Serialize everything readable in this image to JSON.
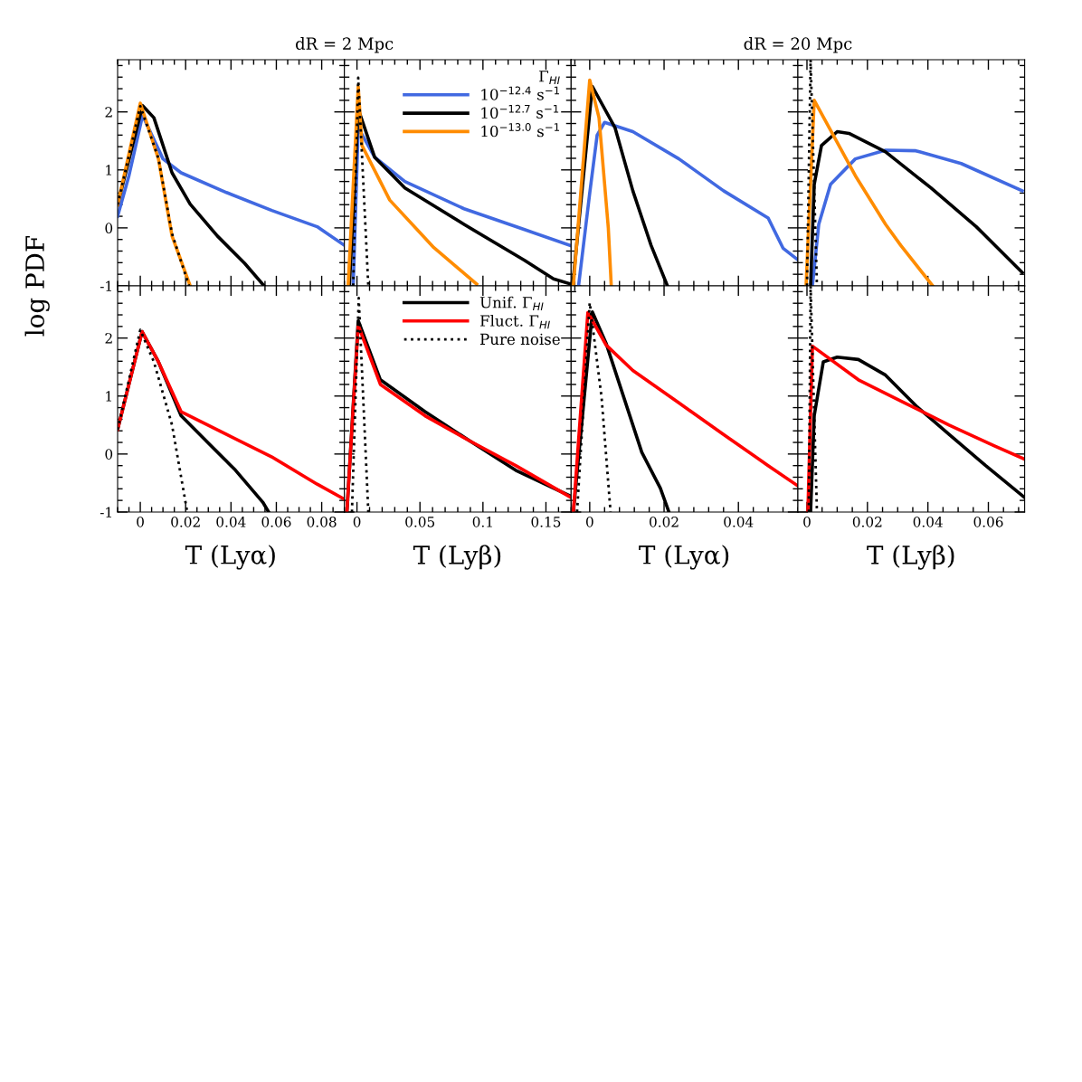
{
  "chart_data": [
    {
      "type": "line",
      "title": "dR = 2 Mpc",
      "ylabel": "log PDF",
      "xlim": [
        -0.01,
        0.09
      ],
      "ylim": [
        -1,
        2.9
      ],
      "xticks": [
        {
          "value": 0,
          "label": null
        },
        {
          "value": 0.02,
          "label": null
        },
        {
          "value": 0.04,
          "label": null
        },
        {
          "value": 0.06,
          "label": null
        },
        {
          "value": 0.08,
          "label": null
        }
      ],
      "yticks": [
        -1,
        0,
        1,
        2
      ],
      "tick_labels": "y",
      "series": [
        {
          "color": "#4169e1",
          "x": [
            -0.01,
            -0.005,
            0.001,
            0.01,
            0.018,
            0.038,
            0.058,
            0.078,
            0.09
          ],
          "values": [
            0.2,
            0.9,
            1.94,
            1.19,
            0.95,
            0.61,
            0.3,
            0.02,
            -0.3
          ]
        },
        {
          "color": "#000000",
          "x": [
            -0.01,
            0.001,
            0.006,
            0.014,
            0.022,
            0.034,
            0.046,
            0.0546
          ],
          "values": [
            0.4,
            2.11,
            1.9,
            0.95,
            0.41,
            -0.14,
            -0.61,
            -1
          ]
        },
        {
          "color": "#000000",
          "line_style": "dotted",
          "x": [
            -0.01,
            0,
            0.008,
            0.014,
            0.0215
          ],
          "values": [
            0.4,
            2.1,
            1.2,
            -0.1,
            -1
          ]
        },
        {
          "color": "#ff8c00",
          "x": [
            -0.01,
            0,
            0.008,
            0.014,
            0.022
          ],
          "values": [
            0.4,
            2.15,
            1.19,
            -0.14,
            -1
          ]
        }
      ]
    },
    {
      "type": "line",
      "xlim": [
        -0.01,
        0.17
      ],
      "ylim": [
        -1,
        2.9
      ],
      "xticks": [
        {
          "value": 0,
          "label": null
        },
        {
          "value": 0.05,
          "label": null
        },
        {
          "value": 0.1,
          "label": null
        },
        {
          "value": 0.15,
          "label": null
        }
      ],
      "yticks": [
        {
          "value": -1,
          "label": null
        },
        {
          "value": 0,
          "label": null
        },
        {
          "value": 1,
          "label": null
        },
        {
          "value": 2,
          "label": null
        }
      ],
      "tick_labels": false,
      "legend": "top right",
      "legend_title": "Γ$_{HI}$",
      "series": [
        {
          "name": "10$^{−12.4}$ s$^{−1}$",
          "color": "#4169e1",
          "x": [
            -0.003,
            0.001,
            0.014,
            0.038,
            0.085,
            0.133,
            0.169
          ],
          "values": [
            -1,
            1.73,
            1.22,
            0.8,
            0.33,
            -0.03,
            -0.3
          ]
        },
        {
          "name": "10$^{−12.7}$ s$^{−1}$",
          "color": "#000000",
          "x": [
            -0.006,
            0.001,
            0.014,
            0.038,
            0.085,
            0.133,
            0.156,
            0.17
          ],
          "values": [
            -1,
            2.05,
            1.22,
            0.69,
            0.06,
            -0.56,
            -0.88,
            -0.97
          ]
        },
        {
          "name": "10$^{−13.0}$ s$^{−1}$",
          "color": "#ff8c00",
          "x": [
            -0.007,
            0.001,
            0.004,
            0.026,
            0.061,
            0.095
          ],
          "values": [
            -1,
            2.44,
            1.42,
            0.48,
            -0.34,
            -0.97
          ]
        },
        {
          "color": "#000000",
          "line_style": "dotted",
          "x": [
            -0.003,
            0.001,
            0.009
          ],
          "values": [
            -1,
            2.59,
            -1
          ]
        }
      ]
    },
    {
      "type": "line",
      "title": "dR = 20 Mpc",
      "xlim": [
        -0.005,
        0.056
      ],
      "ylim": [
        -1,
        2.9
      ],
      "xticks": [
        {
          "value": 0,
          "label": null
        },
        {
          "value": 0.02,
          "label": null
        },
        {
          "value": 0.04,
          "label": null
        }
      ],
      "yticks": [
        {
          "value": -1,
          "label": null
        },
        {
          "value": 0,
          "label": null
        },
        {
          "value": 1,
          "label": null
        },
        {
          "value": 2,
          "label": null
        }
      ],
      "tick_labels": false,
      "series": [
        {
          "color": "#4169e1",
          "x": [
            -0.003,
            0,
            0.002,
            0.004,
            0.0116,
            0.024,
            0.036,
            0.048,
            0.052,
            0.056
          ],
          "values": [
            -1,
            0.6,
            1.6,
            1.82,
            1.66,
            1.19,
            0.64,
            0.17,
            -0.35,
            -0.55
          ]
        },
        {
          "color": "#000000",
          "x": [
            -0.0046,
            0.0007,
            0.0068,
            0.0116,
            0.0165,
            0.0209
          ],
          "values": [
            -1,
            2.44,
            1.73,
            0.64,
            -0.3,
            -1
          ]
        },
        {
          "color": "#ff8c00",
          "x": [
            -0.0044,
            0,
            0.0025,
            0.005,
            0.0058
          ],
          "values": [
            -1,
            2.55,
            1.9,
            0,
            -1
          ]
        }
      ]
    },
    {
      "type": "line",
      "xlim": [
        -0.003,
        0.072
      ],
      "ylim": [
        -1,
        2.9
      ],
      "xticks": [
        {
          "value": 0,
          "label": null
        },
        {
          "value": 0.02,
          "label": null
        },
        {
          "value": 0.04,
          "label": null
        },
        {
          "value": 0.06,
          "label": null
        }
      ],
      "yticks": [
        {
          "value": -1,
          "label": null
        },
        {
          "value": 0,
          "label": null
        },
        {
          "value": 1,
          "label": null
        },
        {
          "value": 2,
          "label": null
        }
      ],
      "tick_labels": false,
      "series": [
        {
          "color": "#4169e1",
          "x": [
            0.0018,
            0.0039,
            0.0078,
            0.016,
            0.026,
            0.036,
            0.051,
            0.0712
          ],
          "values": [
            -1,
            0.06,
            0.75,
            1.19,
            1.34,
            1.33,
            1.11,
            0.64
          ]
        },
        {
          "color": "#000000",
          "x": [
            0.0012,
            0.0024,
            0.0048,
            0.01,
            0.0139,
            0.026,
            0.041,
            0.056,
            0.0712
          ],
          "values": [
            -1,
            0.75,
            1.42,
            1.66,
            1.63,
            1.31,
            0.69,
            0.02,
            -0.77
          ]
        },
        {
          "color": "#ff8c00",
          "x": [
            -0.0003,
            0.0024,
            0.016,
            0.026,
            0.031,
            0.0416
          ],
          "values": [
            -1,
            2.2,
            0.9,
            0.06,
            -0.3,
            -1
          ]
        },
        {
          "color": "#000000",
          "line_style": "dotted",
          "x": [
            0,
            0.0012,
            0.0033
          ],
          "values": [
            -1,
            2.9,
            -1
          ]
        }
      ]
    },
    {
      "type": "line",
      "xlabel": "T (Lyα)",
      "xlim": [
        -0.01,
        0.09
      ],
      "ylim": [
        -1,
        2.9
      ],
      "xticks": [
        0,
        0.02,
        0.04,
        0.06,
        0.08
      ],
      "yticks": [
        -1,
        0,
        1,
        2
      ],
      "series": [
        {
          "color": "#000000",
          "x": [
            -0.01,
            0.0008,
            0.008,
            0.018,
            0.03,
            0.042,
            0.054,
            0.0566
          ],
          "values": [
            0.42,
            2.11,
            1.59,
            0.66,
            0.19,
            -0.28,
            -0.83,
            -1
          ]
        },
        {
          "color": "#ff0000",
          "x": [
            -0.01,
            0.0008,
            0.008,
            0.018,
            0.038,
            0.058,
            0.078,
            0.09
          ],
          "values": [
            0.42,
            2.11,
            1.59,
            0.73,
            0.34,
            -0.05,
            -0.52,
            -0.78
          ]
        },
        {
          "color": "#000000",
          "line_style": "dotted",
          "x": [
            -0.01,
            0,
            0.006,
            0.014,
            0.0207
          ],
          "values": [
            0.42,
            2.14,
            1.59,
            0.5,
            -1
          ]
        }
      ]
    },
    {
      "type": "line",
      "xlabel": "T (Lyβ)",
      "xlim": [
        -0.01,
        0.17
      ],
      "ylim": [
        -1,
        2.9
      ],
      "xticks": [
        0,
        0.05,
        0.1,
        0.15
      ],
      "yticks": [
        {
          "value": -1,
          "label": null
        },
        {
          "value": 0,
          "label": null
        },
        {
          "value": 1,
          "label": null
        },
        {
          "value": 2,
          "label": null
        }
      ],
      "tick_labels": "x",
      "legend": "top right",
      "series": [
        {
          "name": "Unif. Γ$_{HI}$",
          "color": "#000000",
          "x": [
            -0.008,
            0.001,
            0.0186,
            0.054,
            0.09,
            0.126,
            0.169
          ],
          "values": [
            -1,
            2.3,
            1.28,
            0.73,
            0.22,
            -0.28,
            -0.72
          ]
        },
        {
          "name": "Fluct. Γ$_{HI}$",
          "color": "#ff0000",
          "x": [
            -0.008,
            0.001,
            0.0186,
            0.054,
            0.09,
            0.126,
            0.17
          ],
          "values": [
            -1,
            2.22,
            1.2,
            0.66,
            0.22,
            -0.2,
            -0.75
          ]
        },
        {
          "name": "Pure noise",
          "color": "#000000",
          "line_style": "dotted",
          "x": [
            -0.004,
            0.0014,
            0.009
          ],
          "values": [
            -1,
            2.69,
            -1
          ]
        }
      ]
    },
    {
      "type": "line",
      "xlabel": "T (Lyα)",
      "xlim": [
        -0.005,
        0.056
      ],
      "ylim": [
        -1,
        2.9
      ],
      "xticks": [
        0,
        0.02,
        0.04
      ],
      "yticks": [
        {
          "value": -1,
          "label": null
        },
        {
          "value": 0,
          "label": null
        },
        {
          "value": 1,
          "label": null
        },
        {
          "value": 2,
          "label": null
        }
      ],
      "tick_labels": "x",
      "series": [
        {
          "color": "#000000",
          "x": [
            -0.0044,
            0.0007,
            0.0044,
            0.0092,
            0.014,
            0.019,
            0.0213
          ],
          "values": [
            -1,
            2.45,
            1.91,
            0.97,
            0.03,
            -0.59,
            -1
          ]
        },
        {
          "color": "#ff0000",
          "x": [
            -0.0044,
            -0.0005,
            0.0044,
            0.0116,
            0.0238,
            0.0359,
            0.048,
            0.056
          ],
          "values": [
            -1,
            2.44,
            1.88,
            1.44,
            0.89,
            0.34,
            -0.2,
            -0.55
          ]
        },
        {
          "color": "#000000",
          "line_style": "dotted",
          "x": [
            -0.0034,
            0,
            0.0032,
            0.0056
          ],
          "values": [
            -1,
            2.61,
            0.97,
            -1
          ]
        }
      ]
    },
    {
      "type": "line",
      "xlabel": "T (Lyβ)",
      "xlim": [
        -0.003,
        0.072
      ],
      "ylim": [
        -1,
        2.9
      ],
      "xticks": [
        0,
        0.02,
        0.04,
        0.06
      ],
      "yticks": [
        {
          "value": -1,
          "label": null
        },
        {
          "value": 0,
          "label": null
        },
        {
          "value": 1,
          "label": null
        },
        {
          "value": 2,
          "label": null
        }
      ],
      "tick_labels": "x",
      "series": [
        {
          "color": "#000000",
          "x": [
            0.0012,
            0.0024,
            0.0054,
            0.01,
            0.017,
            0.026,
            0.0365,
            0.047,
            0.0591,
            0.072
          ],
          "values": [
            -1,
            0.66,
            1.59,
            1.67,
            1.63,
            1.36,
            0.81,
            0.34,
            -0.2,
            -0.75
          ]
        },
        {
          "color": "#ff0000",
          "x": [
            0.0003,
            0.0018,
            0.017,
            0.032,
            0.047,
            0.062,
            0.072
          ],
          "values": [
            -1,
            1.86,
            1.28,
            0.89,
            0.5,
            0.14,
            -0.09
          ]
        },
        {
          "color": "#000000",
          "line_style": "dotted",
          "x": [
            0.0006,
            0.0012,
            0.0033
          ],
          "values": [
            -1,
            2.9,
            -1
          ]
        }
      ]
    }
  ]
}
